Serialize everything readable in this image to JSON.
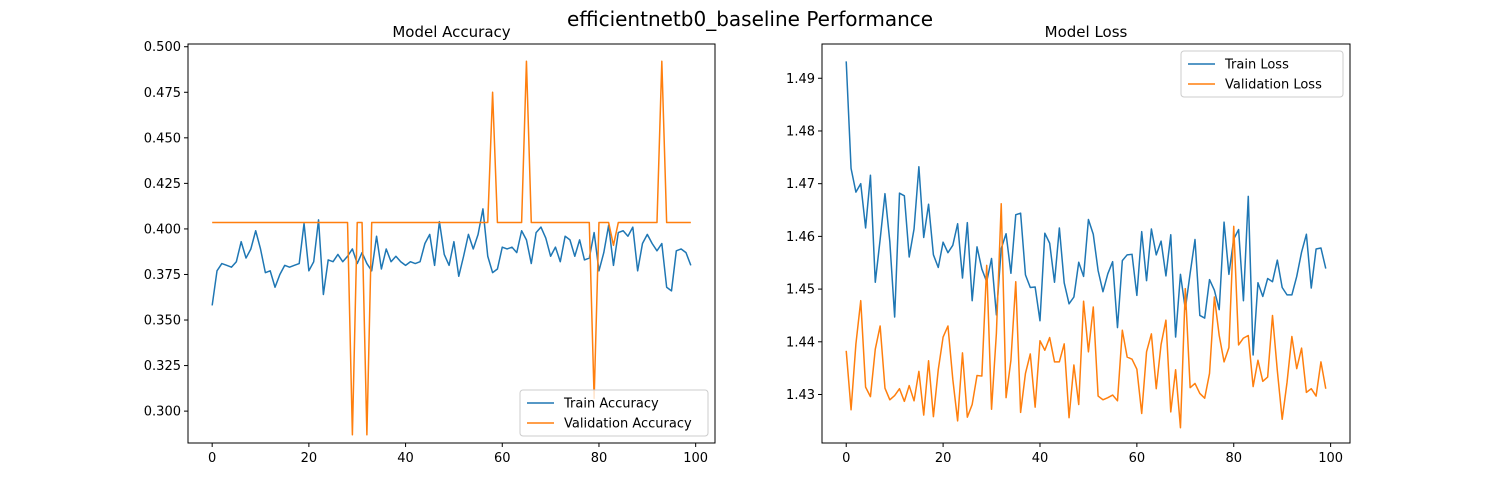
{
  "figure": {
    "title": "efficientnetb0_baseline Performance"
  },
  "chart_data": [
    {
      "type": "line",
      "title": "Model Accuracy",
      "xlabel": "",
      "ylabel": "",
      "xlim": [
        -5,
        104
      ],
      "ylim": [
        0.2825,
        0.5015
      ],
      "xticks": [
        0,
        20,
        40,
        60,
        80,
        100
      ],
      "yticks": [
        0.3,
        0.325,
        0.35,
        0.375,
        0.4,
        0.425,
        0.45,
        0.475,
        0.5
      ],
      "ytick_labels": [
        "0.300",
        "0.325",
        "0.350",
        "0.375",
        "0.400",
        "0.425",
        "0.450",
        "0.475",
        "0.500"
      ],
      "grid": false,
      "legend": "lower-right",
      "series": [
        {
          "name": "Train Accuracy",
          "color": "#1f77b4",
          "values": [
            0.358,
            0.377,
            0.381,
            0.38,
            0.379,
            0.382,
            0.393,
            0.384,
            0.389,
            0.399,
            0.389,
            0.376,
            0.377,
            0.368,
            0.375,
            0.38,
            0.379,
            0.38,
            0.381,
            0.403,
            0.377,
            0.382,
            0.405,
            0.364,
            0.383,
            0.382,
            0.386,
            0.382,
            0.385,
            0.389,
            0.381,
            0.387,
            0.381,
            0.377,
            0.396,
            0.378,
            0.389,
            0.382,
            0.385,
            0.382,
            0.38,
            0.382,
            0.381,
            0.382,
            0.392,
            0.397,
            0.38,
            0.404,
            0.386,
            0.38,
            0.393,
            0.374,
            0.385,
            0.397,
            0.389,
            0.397,
            0.411,
            0.385,
            0.376,
            0.378,
            0.39,
            0.389,
            0.39,
            0.387,
            0.399,
            0.394,
            0.381,
            0.398,
            0.401,
            0.395,
            0.385,
            0.39,
            0.382,
            0.396,
            0.394,
            0.385,
            0.394,
            0.383,
            0.384,
            0.398,
            0.377,
            0.387,
            0.402,
            0.38,
            0.398,
            0.399,
            0.396,
            0.401,
            0.377,
            0.392,
            0.397,
            0.392,
            0.388,
            0.392,
            0.368,
            0.366,
            0.388,
            0.389,
            0.387,
            0.38
          ]
        },
        {
          "name": "Validation Accuracy",
          "color": "#ff7f0e",
          "values": [
            0.4035,
            0.4035,
            0.4035,
            0.4035,
            0.4035,
            0.4035,
            0.4035,
            0.4035,
            0.4035,
            0.4035,
            0.4035,
            0.4035,
            0.4035,
            0.4035,
            0.4035,
            0.4035,
            0.4035,
            0.4035,
            0.4035,
            0.4035,
            0.4035,
            0.4035,
            0.4035,
            0.4035,
            0.4035,
            0.4035,
            0.4035,
            0.4035,
            0.4035,
            0.287,
            0.4035,
            0.4035,
            0.287,
            0.4035,
            0.4035,
            0.4035,
            0.4035,
            0.4035,
            0.4035,
            0.4035,
            0.4035,
            0.4035,
            0.4035,
            0.4035,
            0.4035,
            0.4035,
            0.4035,
            0.4035,
            0.4035,
            0.4035,
            0.4035,
            0.4035,
            0.4035,
            0.4035,
            0.4035,
            0.4035,
            0.4035,
            0.4035,
            0.475,
            0.4035,
            0.4035,
            0.4035,
            0.4035,
            0.4035,
            0.4035,
            0.492,
            0.4035,
            0.4035,
            0.4035,
            0.4035,
            0.4035,
            0.4035,
            0.4035,
            0.4035,
            0.4035,
            0.4035,
            0.4035,
            0.4035,
            0.4035,
            0.307,
            0.4035,
            0.4035,
            0.4035,
            0.391,
            0.4035,
            0.4035,
            0.4035,
            0.4035,
            0.4035,
            0.4035,
            0.4035,
            0.4035,
            0.4035,
            0.492,
            0.4035,
            0.4035,
            0.4035,
            0.4035,
            0.4035,
            0.4035
          ]
        }
      ]
    },
    {
      "type": "line",
      "title": "Model Loss",
      "xlabel": "",
      "ylabel": "",
      "xlim": [
        -5,
        104
      ],
      "ylim": [
        1.4208,
        1.4965
      ],
      "xticks": [
        0,
        20,
        40,
        60,
        80,
        100
      ],
      "yticks": [
        1.43,
        1.44,
        1.45,
        1.46,
        1.47,
        1.48,
        1.49
      ],
      "ytick_labels": [
        "1.43",
        "1.44",
        "1.45",
        "1.46",
        "1.47",
        "1.48",
        "1.49"
      ],
      "grid": false,
      "legend": "upper-right",
      "series": [
        {
          "name": "Train Loss",
          "color": "#1f77b4",
          "values": [
            1.4932,
            1.4729,
            1.4684,
            1.47,
            1.4616,
            1.4716,
            1.4513,
            1.4594,
            1.4681,
            1.459,
            1.4447,
            1.4682,
            1.4677,
            1.4561,
            1.4614,
            1.4732,
            1.4598,
            1.4661,
            1.4565,
            1.4541,
            1.4589,
            1.4569,
            1.4583,
            1.4624,
            1.4521,
            1.4626,
            1.4478,
            1.458,
            1.4538,
            1.4514,
            1.4558,
            1.4451,
            1.4577,
            1.4605,
            1.453,
            1.4641,
            1.4644,
            1.4527,
            1.4503,
            1.4504,
            1.444,
            1.4606,
            1.4587,
            1.4513,
            1.4616,
            1.4512,
            1.4472,
            1.4485,
            1.4551,
            1.4524,
            1.4632,
            1.4604,
            1.4535,
            1.4495,
            1.4529,
            1.4552,
            1.4427,
            1.4554,
            1.4565,
            1.4566,
            1.4488,
            1.4609,
            1.4516,
            1.4614,
            1.4565,
            1.4591,
            1.4525,
            1.4603,
            1.4409,
            1.4528,
            1.4462,
            1.453,
            1.4594,
            1.445,
            1.4445,
            1.4518,
            1.4498,
            1.4461,
            1.4627,
            1.4528,
            1.4595,
            1.4613,
            1.4478,
            1.4676,
            1.4375,
            1.4512,
            1.4486,
            1.452,
            1.4514,
            1.4555,
            1.4503,
            1.4489,
            1.4489,
            1.4524,
            1.457,
            1.4604,
            1.4502,
            1.4576,
            1.4578,
            1.4539
          ]
        },
        {
          "name": "Validation Loss",
          "color": "#ff7f0e",
          "values": [
            1.4383,
            1.4271,
            1.4396,
            1.4478,
            1.4314,
            1.4296,
            1.4386,
            1.443,
            1.4312,
            1.429,
            1.4298,
            1.4311,
            1.4287,
            1.4317,
            1.4288,
            1.4344,
            1.4261,
            1.4364,
            1.4258,
            1.4347,
            1.4409,
            1.443,
            1.4329,
            1.425,
            1.4379,
            1.4257,
            1.4281,
            1.4336,
            1.4335,
            1.4545,
            1.4272,
            1.4416,
            1.4662,
            1.4294,
            1.4365,
            1.4514,
            1.4266,
            1.434,
            1.4377,
            1.4276,
            1.4402,
            1.4384,
            1.4408,
            1.4362,
            1.4362,
            1.4396,
            1.4256,
            1.4356,
            1.4281,
            1.4477,
            1.4381,
            1.4466,
            1.4297,
            1.429,
            1.4294,
            1.4299,
            1.4288,
            1.4422,
            1.4371,
            1.4367,
            1.4348,
            1.4264,
            1.4381,
            1.4415,
            1.4311,
            1.4395,
            1.4441,
            1.4267,
            1.4347,
            1.4237,
            1.4501,
            1.4313,
            1.4321,
            1.4302,
            1.4293,
            1.434,
            1.4485,
            1.4412,
            1.4362,
            1.4389,
            1.4619,
            1.4394,
            1.4407,
            1.4412,
            1.4315,
            1.4365,
            1.4325,
            1.4333,
            1.445,
            1.4345,
            1.4253,
            1.4323,
            1.441,
            1.4349,
            1.4388,
            1.4304,
            1.4311,
            1.4297,
            1.4362,
            1.4311
          ]
        }
      ]
    }
  ]
}
